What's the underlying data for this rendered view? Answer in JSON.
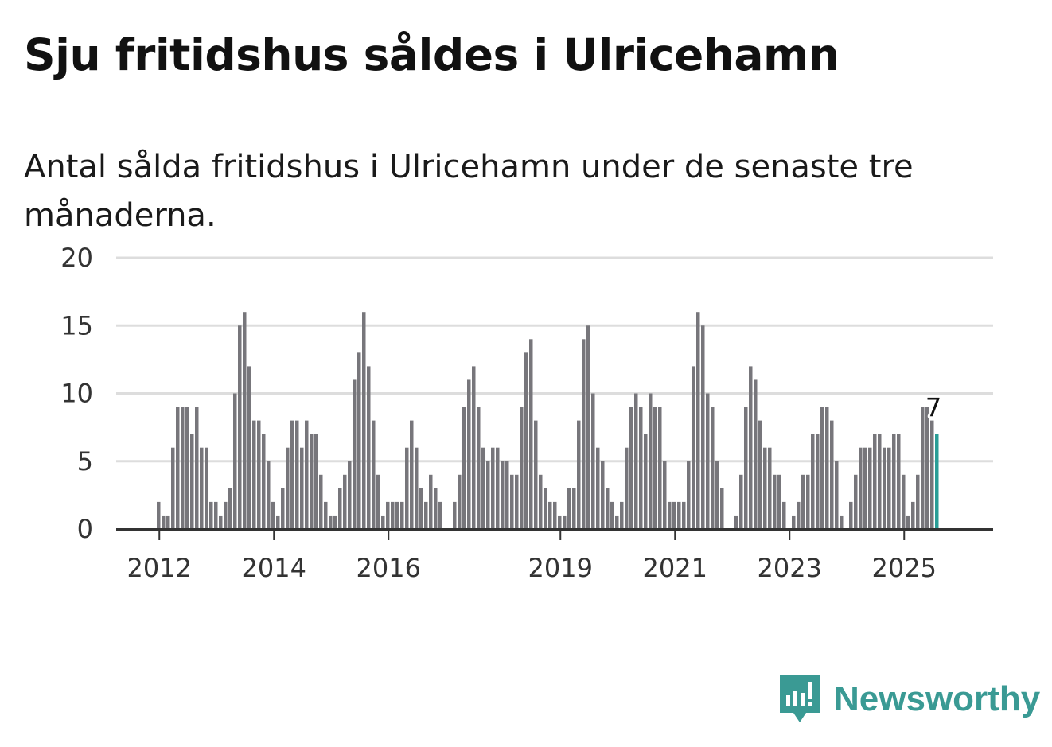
{
  "title": "Sju fritidshus såldes i Ulricehamn",
  "subtitle": "Antal sålda fritidshus i Ulricehamn under de senaste tre månaderna.",
  "brand": {
    "name": "Newsworthy"
  },
  "colors": {
    "bar": "#77767b",
    "highlight": "#2a9d96",
    "grid": "#dddddd",
    "axis": "#333333",
    "brand": "#3a9a94"
  },
  "chart_data": {
    "type": "bar",
    "title": "Sju fritidshus såldes i Ulricehamn",
    "subtitle": "Antal sålda fritidshus i Ulricehamn under de senaste tre månaderna.",
    "xlabel": "",
    "ylabel": "",
    "ylim": [
      0,
      20
    ],
    "yticks": [
      "0",
      "5",
      "10",
      "15",
      "20"
    ],
    "xticks": [
      "2012",
      "2014",
      "2016",
      "2019",
      "2021",
      "2023",
      "2025"
    ],
    "grid": true,
    "legend": "none",
    "highlight": {
      "index": 163,
      "label": "7"
    },
    "series": [
      {
        "values": [
          2,
          1,
          1,
          6,
          9,
          9,
          9,
          7,
          9,
          6,
          6,
          2,
          2,
          1,
          2,
          3,
          10,
          15,
          16,
          12,
          8,
          8,
          7,
          5,
          2,
          1,
          3,
          6,
          8,
          8,
          6,
          8,
          7,
          7,
          4,
          2,
          1,
          1,
          3,
          4,
          5,
          11,
          13,
          16,
          12,
          8,
          4,
          1,
          2,
          2,
          2,
          2,
          6,
          8,
          6,
          3,
          2,
          4,
          3,
          2,
          0,
          0,
          2,
          4,
          9,
          11,
          12,
          9,
          6,
          5,
          6,
          6,
          5,
          5,
          4,
          4,
          9,
          13,
          14,
          8,
          4,
          3,
          2,
          2,
          1,
          1,
          3,
          3,
          8,
          14,
          15,
          10,
          6,
          5,
          3,
          2,
          1,
          2,
          6,
          9,
          10,
          9,
          7,
          10,
          9,
          9,
          5,
          2,
          2,
          2,
          2,
          5,
          12,
          16,
          15,
          10,
          9,
          5,
          3,
          0,
          0,
          1,
          4,
          9,
          12,
          11,
          8,
          6,
          6,
          4,
          4,
          2,
          0,
          1,
          2,
          4,
          4,
          7,
          7,
          9,
          9,
          8,
          5,
          1,
          0,
          2,
          4,
          6,
          6,
          6,
          7,
          7,
          6,
          6,
          7,
          7,
          4,
          1,
          2,
          4,
          9,
          9,
          8,
          7
        ]
      }
    ]
  }
}
